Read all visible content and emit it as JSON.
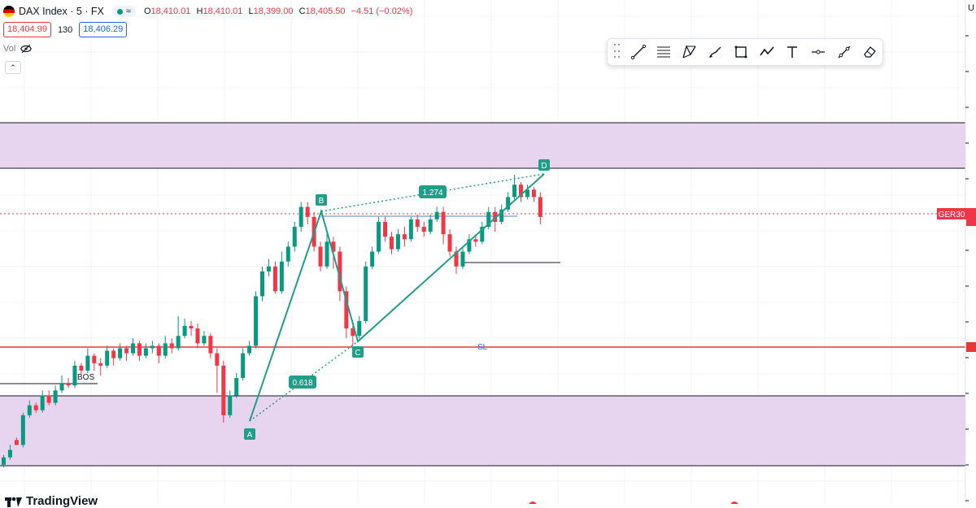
{
  "header": {
    "symbol": "DAX Index · 5 · FX",
    "ohlc": {
      "o_label": "O",
      "o": "18,410.01",
      "h_label": "H",
      "h": "18,410.01",
      "l_label": "L",
      "l": "18,399.00",
      "c_label": "C",
      "c": "18,405.50",
      "change": "−4.51 (−0.02%)"
    },
    "bid": "18,404.99",
    "spread": "130",
    "ask": "18,406.29",
    "vol_label": "Vol"
  },
  "scale_hint": "U",
  "colors": {
    "up": "#089981",
    "down": "#f23645",
    "zone": "#e7d4ef",
    "pattern": "#1f9e89",
    "sl": "#e53935",
    "blue_line": "#5b7fbf"
  },
  "labels": {
    "A": "A",
    "B": "B",
    "C": "C",
    "D": "D",
    "fib_xb": "0.618",
    "fib_bd": "1.274",
    "sl": "SL",
    "bos": "BOS",
    "ger30": "GER30",
    "watermark": "TradingView"
  },
  "toolbar_icons": [
    "trend-line-icon",
    "fib-retracement-icon",
    "pattern-icon",
    "brush-icon",
    "rectangle-icon",
    "zigzag-icon",
    "text-icon",
    "horizontal-line-icon",
    "measure-icon",
    "eraser-icon"
  ],
  "chart_data": {
    "type": "candlestick",
    "symbol": "DAX Index",
    "timeframe": "5",
    "candles_desc": "price moves up from A (low) to B, retraces to C, rallies to D; estimated OHLC in relative price units (higher = higher price)",
    "candles": [
      [
        10,
        8,
        11,
        8
      ],
      [
        8,
        20,
        21,
        7
      ],
      [
        20,
        24,
        26,
        19
      ],
      [
        24,
        22,
        25,
        21
      ],
      [
        22,
        28,
        30,
        21
      ],
      [
        28,
        25,
        30,
        24
      ],
      [
        25,
        30,
        32,
        24
      ],
      [
        30,
        33,
        36,
        29
      ],
      [
        33,
        32,
        35,
        31
      ],
      [
        32,
        40,
        42,
        31
      ],
      [
        40,
        38,
        41,
        36
      ],
      [
        38,
        44,
        47,
        37
      ],
      [
        44,
        41,
        45,
        38
      ],
      [
        41,
        40,
        43,
        36
      ],
      [
        40,
        46,
        48,
        39
      ],
      [
        46,
        43,
        47,
        40
      ],
      [
        43,
        47,
        49,
        42
      ],
      [
        47,
        45,
        48,
        42
      ],
      [
        45,
        49,
        51,
        44
      ],
      [
        49,
        44,
        50,
        42
      ],
      [
        44,
        47,
        49,
        43
      ],
      [
        47,
        48,
        50,
        45
      ],
      [
        48,
        44,
        49,
        41
      ],
      [
        44,
        49,
        52,
        43
      ],
      [
        49,
        47,
        51,
        45
      ],
      [
        47,
        52,
        60,
        46
      ],
      [
        52,
        56,
        59,
        51
      ],
      [
        56,
        55,
        58,
        52
      ],
      [
        55,
        49,
        57,
        47
      ],
      [
        49,
        52,
        54,
        48
      ],
      [
        52,
        45,
        53,
        43
      ],
      [
        45,
        40,
        47,
        29
      ],
      [
        40,
        20,
        42,
        17
      ],
      [
        20,
        28,
        30,
        19
      ],
      [
        28,
        35,
        37,
        27
      ],
      [
        35,
        45,
        47,
        34
      ],
      [
        45,
        48,
        50,
        44
      ],
      [
        48,
        68,
        70,
        47
      ],
      [
        68,
        78,
        80,
        66
      ],
      [
        78,
        80,
        83,
        76
      ],
      [
        80,
        70,
        82,
        69
      ],
      [
        70,
        82,
        86,
        69
      ],
      [
        82,
        88,
        90,
        80
      ],
      [
        88,
        96,
        98,
        86
      ],
      [
        96,
        104,
        106,
        94
      ],
      [
        104,
        100,
        106,
        97
      ],
      [
        100,
        88,
        102,
        86
      ],
      [
        88,
        80,
        90,
        78
      ],
      [
        80,
        90,
        93,
        79
      ],
      [
        90,
        86,
        92,
        79
      ],
      [
        86,
        70,
        88,
        66
      ],
      [
        70,
        55,
        72,
        51
      ],
      [
        55,
        52,
        56,
        48
      ],
      [
        52,
        58,
        60,
        51
      ],
      [
        58,
        80,
        82,
        57
      ],
      [
        80,
        86,
        88,
        79
      ],
      [
        86,
        98,
        100,
        85
      ],
      [
        98,
        92,
        100,
        90
      ],
      [
        92,
        87,
        94,
        85
      ],
      [
        87,
        93,
        95,
        86
      ],
      [
        93,
        91,
        96,
        88
      ],
      [
        91,
        99,
        100,
        90
      ],
      [
        99,
        96,
        101,
        94
      ],
      [
        96,
        94,
        98,
        92
      ],
      [
        94,
        99,
        101,
        93
      ],
      [
        99,
        102,
        104,
        98
      ],
      [
        102,
        93,
        104,
        89
      ],
      [
        93,
        86,
        95,
        84
      ],
      [
        86,
        80,
        88,
        77
      ],
      [
        80,
        86,
        88,
        79
      ],
      [
        86,
        91,
        93,
        85
      ],
      [
        91,
        90,
        93,
        88
      ],
      [
        90,
        96,
        98,
        89
      ],
      [
        96,
        102,
        104,
        95
      ],
      [
        102,
        98,
        104,
        94
      ],
      [
        98,
        103,
        105,
        97
      ],
      [
        103,
        108,
        110,
        102
      ],
      [
        108,
        113,
        117,
        107
      ],
      [
        113,
        108,
        114,
        106
      ],
      [
        108,
        111,
        113,
        107
      ],
      [
        111,
        108,
        112,
        106
      ],
      [
        108,
        100,
        110,
        97
      ]
    ],
    "zones": [
      {
        "name": "upper-supply-zone",
        "from_px_desc": "upper purple band"
      },
      {
        "name": "lower-demand-zone",
        "from_px_desc": "lower purple band"
      }
    ],
    "pattern": {
      "points": [
        "A",
        "B",
        "C",
        "D"
      ],
      "ratios": [
        "0.618",
        "1.274"
      ]
    },
    "levels": [
      "SL",
      "BOS",
      "GER30"
    ]
  }
}
